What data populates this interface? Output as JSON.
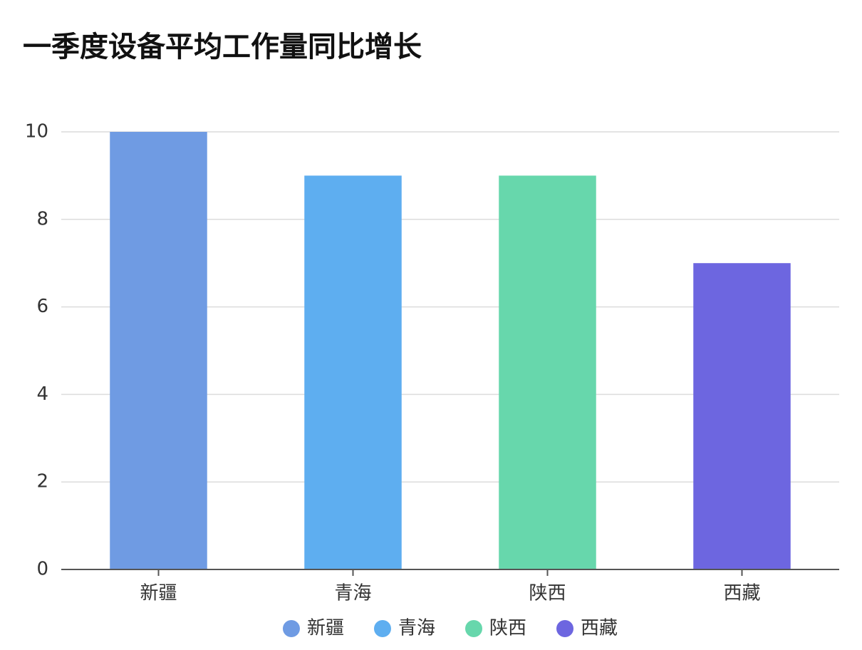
{
  "chart_data": {
    "type": "bar",
    "title": "一季度设备平均工作量同比增长",
    "categories": [
      "新疆",
      "青海",
      "陕西",
      "西藏"
    ],
    "values": [
      10,
      9,
      9,
      7
    ],
    "colors": [
      "#6f9be3",
      "#5eaef0",
      "#67d7ac",
      "#6d66e0"
    ],
    "ylim": [
      0,
      10
    ],
    "yticks": [
      0,
      2,
      4,
      6,
      8,
      10
    ],
    "grid": true,
    "legend": "bottom"
  }
}
